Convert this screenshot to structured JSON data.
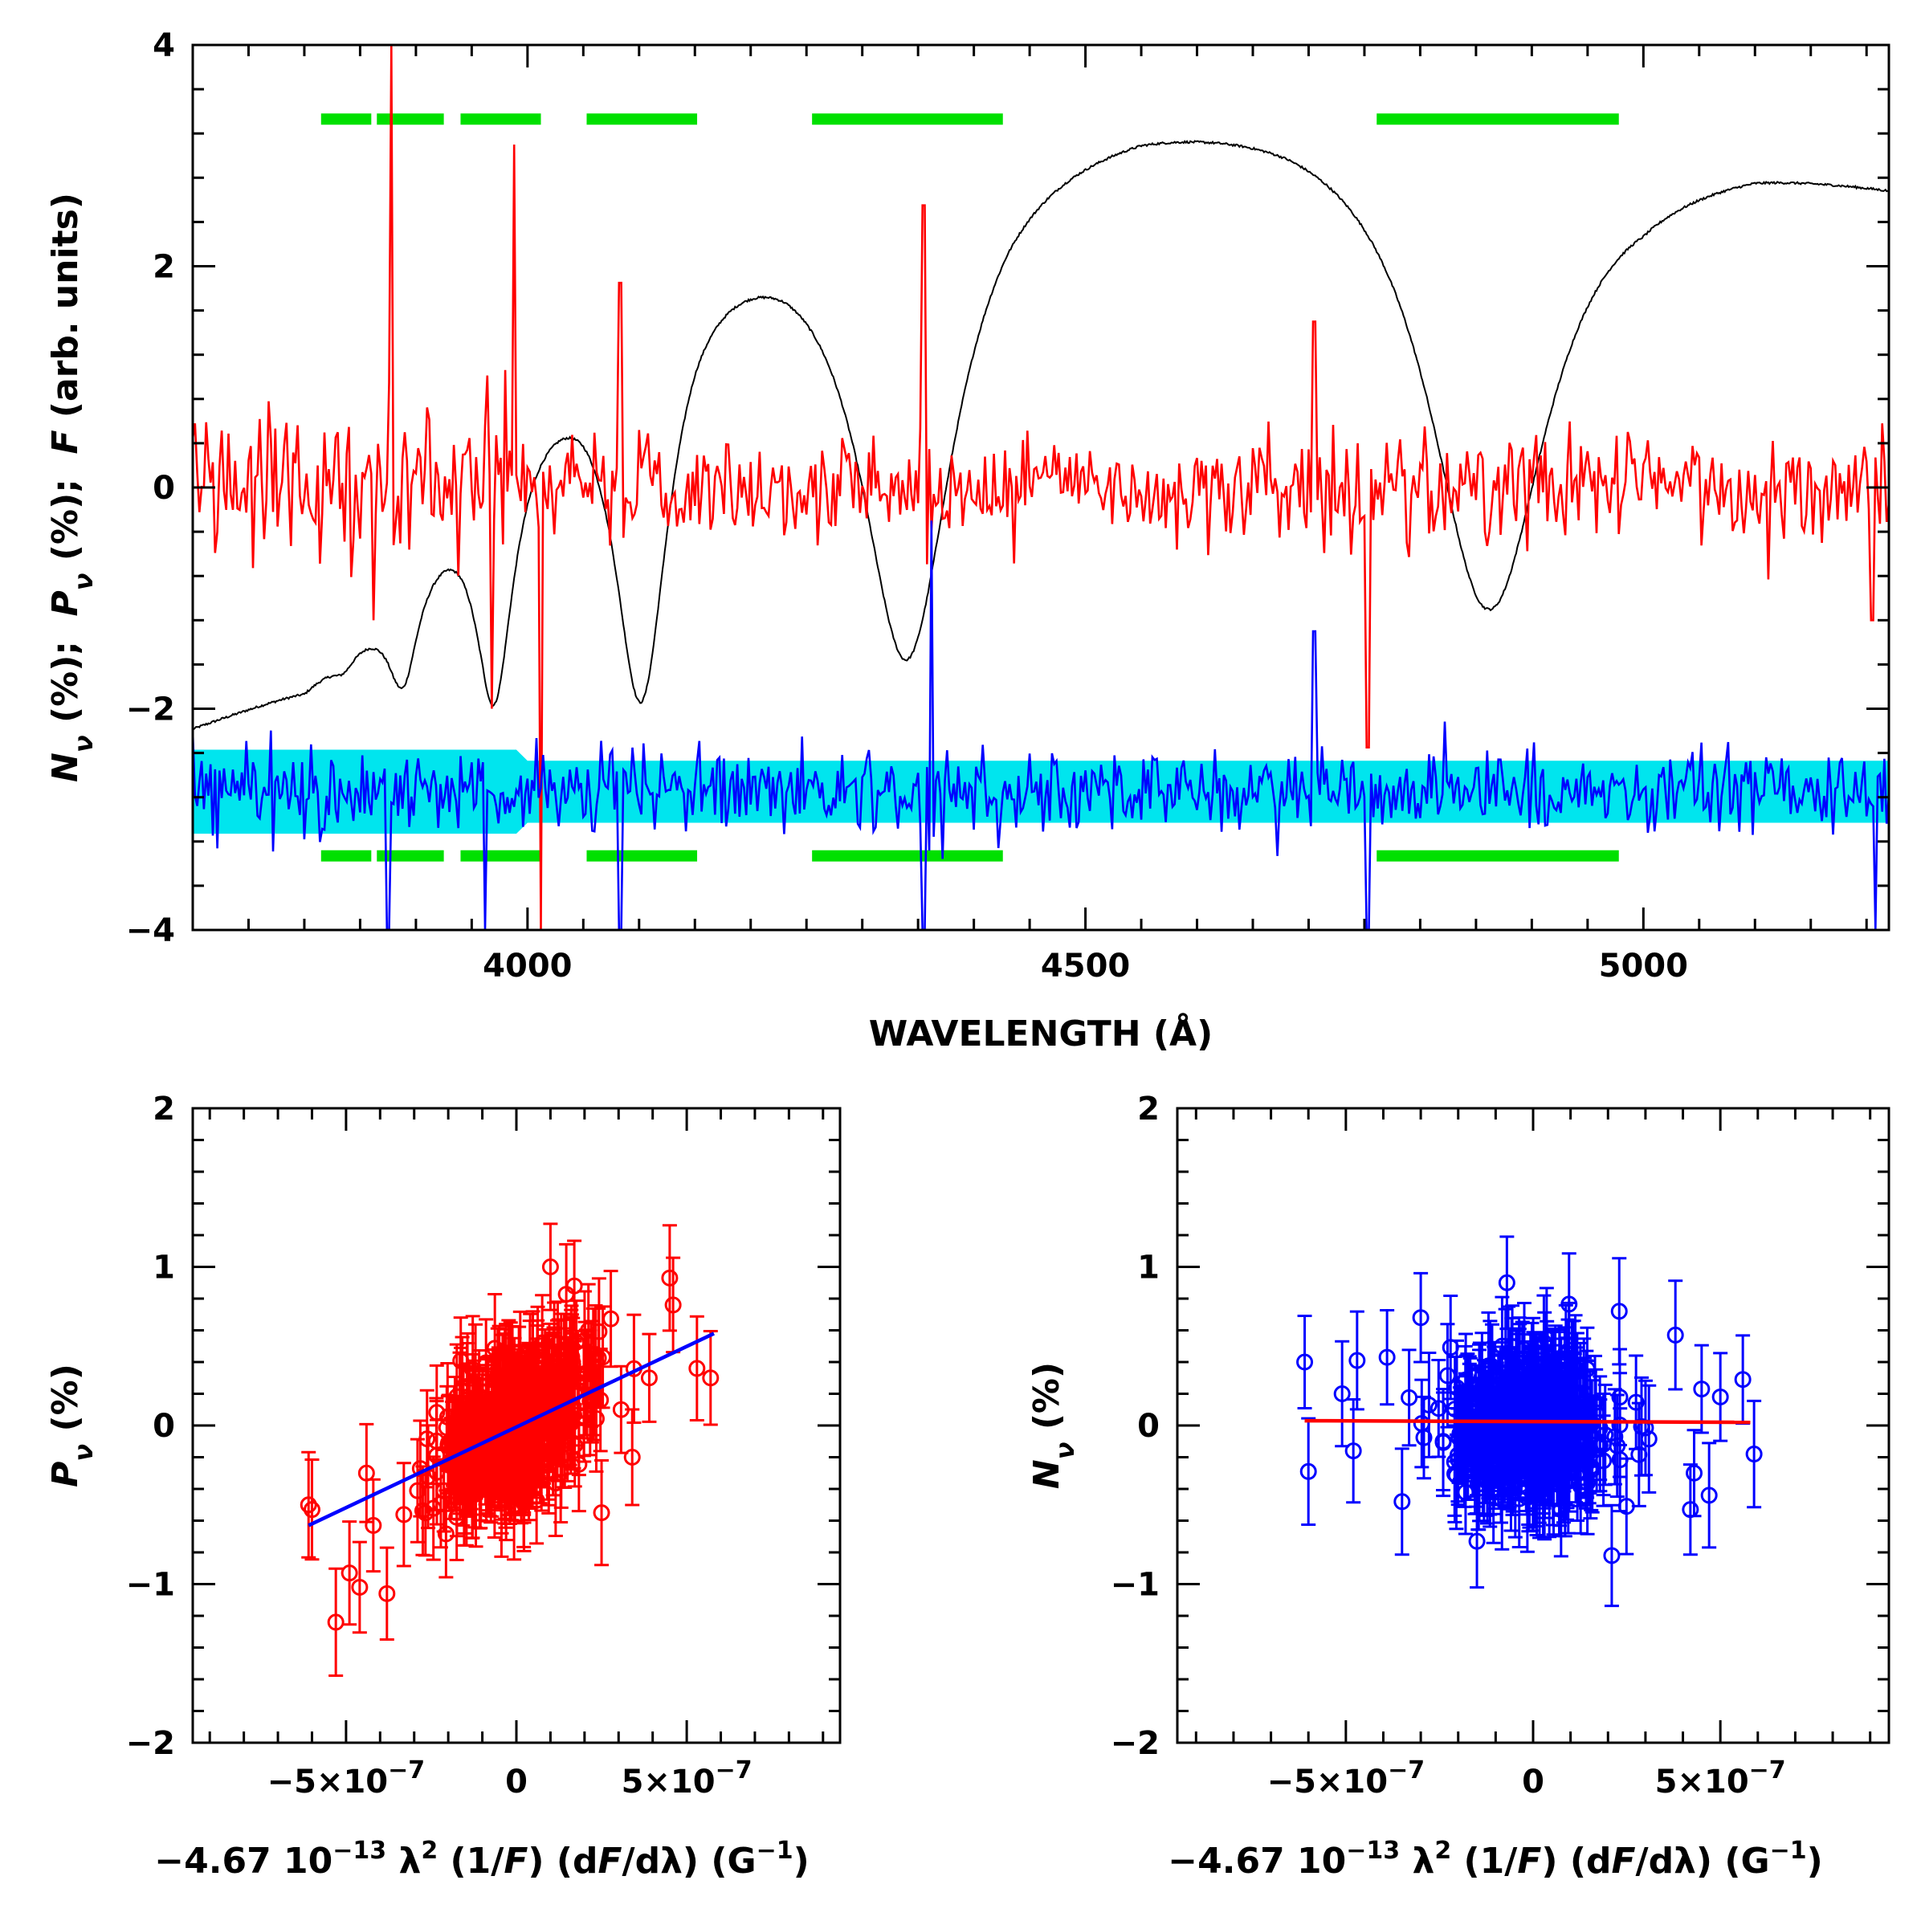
{
  "colors": {
    "flux": "#000000",
    "pv": "#ff0000",
    "nv": "#0000ff",
    "nv_band": "#00e5ee",
    "masks": "#00e000",
    "pv_fit": "#0000ff",
    "nv_fit": "#ff0000"
  },
  "chart_data": [
    {
      "type": "line",
      "panel": "spectrum",
      "xlabel": "WAVELENGTH (Å)",
      "ylabel": {
        "n": "N",
        "n_sub": "ν",
        "n_unit": " (%);  ",
        "p": "P",
        "p_sub": "ν",
        "p_unit": " (%);  ",
        "f": "F",
        "f_unit": " (arb. units)"
      },
      "xlim": [
        3700,
        5220
      ],
      "ylim": [
        -4,
        4
      ],
      "xticks": [
        "4000",
        "4500",
        "5000"
      ],
      "yticks": [
        "−4",
        "−2",
        "0",
        "2",
        "4"
      ],
      "balmer_lines": [
        {
          "wavelength": 3835,
          "flux_min": -1.45
        },
        {
          "wavelength": 3889,
          "flux_min": -1.5
        },
        {
          "wavelength": 3970,
          "flux_min": -1.65
        },
        {
          "wavelength": 4102,
          "flux_min": -1.65
        },
        {
          "wavelength": 4340,
          "flux_min": -1.42
        },
        {
          "wavelength": 4861,
          "flux_min": -1.05
        }
      ],
      "masked_regions": [
        [
          3815,
          3860
        ],
        [
          3865,
          3925
        ],
        [
          3940,
          4012
        ],
        [
          4053,
          4152
        ],
        [
          4255,
          4426
        ],
        [
          4761,
          4978
        ]
      ],
      "mask_levels": {
        "upper": 3.33,
        "lower": -3.33
      },
      "pv_spikes": [
        {
          "wavelength": 3878,
          "value": 4.0
        },
        {
          "wavelength": 3862,
          "value": -1.2
        },
        {
          "wavelength": 3988,
          "value": 3.1
        },
        {
          "wavelength": 4083,
          "value": 1.85
        },
        {
          "wavelength": 4355,
          "value": 2.55
        },
        {
          "wavelength": 4705,
          "value": 1.5
        },
        {
          "wavelength": 3968,
          "value": -2.0
        },
        {
          "wavelength": 4012,
          "value": -4.0
        },
        {
          "wavelength": 4753,
          "value": -2.35
        },
        {
          "wavelength": 5205,
          "value": -1.2
        }
      ],
      "nv_spikes": [
        {
          "wavelength": 4362,
          "value": -0.3
        },
        {
          "wavelength": 4705,
          "value": -1.3
        },
        {
          "wavelength": 3875,
          "value": -4.0
        },
        {
          "wavelength": 3962,
          "value": -4.0
        },
        {
          "wavelength": 4083,
          "value": -4.0
        },
        {
          "wavelength": 4355,
          "value": -4.0
        },
        {
          "wavelength": 4753,
          "value": -4.0
        },
        {
          "wavelength": 5208,
          "value": -4.0
        }
      ],
      "nv_offset": -2.75,
      "nv_band": {
        "center": -2.75,
        "half_width": 0.33
      }
    },
    {
      "type": "scatter",
      "panel": "pv-regression",
      "xlabel": {
        "pre": "−4.67 10",
        "exp": "−13",
        "mid": " λ",
        "sq": "2",
        "paren1": " (1/",
        "F1": "F",
        "paren2": ") (d",
        "F2": "F",
        "paren3": "/dλ) (G",
        "gexp": "−1",
        "end": ")"
      },
      "ylabel": {
        "sym": "P",
        "sub": "ν",
        "unit": " (%)"
      },
      "xlim": [
        -9.5e-07,
        9.5e-07
      ],
      "ylim": [
        -2,
        2
      ],
      "xticks": [
        {
          "value": -5e-07,
          "label": "−5×10",
          "exp": "−7"
        },
        {
          "value": 0,
          "label": "0",
          "exp": ""
        },
        {
          "value": 5e-07,
          "label": "5×10",
          "exp": "−7"
        }
      ],
      "yticks": [
        "−2",
        "−1",
        "0",
        "1",
        "2"
      ],
      "fit": {
        "x": [
          -6.1e-07,
          5.8e-07
        ],
        "y": [
          -0.63,
          0.58
        ]
      },
      "extreme_points": [
        {
          "x": -6.1e-07,
          "y": -0.5
        },
        {
          "x": -6e-07,
          "y": -0.53
        },
        {
          "x": -5.3e-07,
          "y": -1.24
        },
        {
          "x": -4.9e-07,
          "y": -0.93
        },
        {
          "x": -4.6e-07,
          "y": -1.02
        },
        {
          "x": -4.2e-07,
          "y": -0.63
        },
        {
          "x": -3.8e-07,
          "y": -1.06
        },
        {
          "x": -4.4e-07,
          "y": -0.3
        },
        {
          "x": 4.5e-07,
          "y": 0.93
        },
        {
          "x": 4.6e-07,
          "y": 0.76
        },
        {
          "x": 5.3e-07,
          "y": 0.36
        },
        {
          "x": 5.7e-07,
          "y": 0.3
        },
        {
          "x": 3.9e-07,
          "y": 0.3
        },
        {
          "x": 1e-07,
          "y": 1.0
        },
        {
          "x": 1.7e-07,
          "y": 0.88
        },
        {
          "x": 1.3e-07,
          "y": -0.3
        },
        {
          "x": 3.4e-07,
          "y": -0.2
        },
        {
          "x": 2.5e-07,
          "y": -0.55
        }
      ],
      "cloud": {
        "count": 450,
        "slope_per_unit": 1000000,
        "scatter": 0.2,
        "error": 0.3
      }
    },
    {
      "type": "scatter",
      "panel": "nv-regression",
      "xlabel": {
        "pre": "−4.67 10",
        "exp": "−13",
        "mid": " λ",
        "sq": "2",
        "paren1": " (1/",
        "F1": "F",
        "paren2": ") (d",
        "F2": "F",
        "paren3": "/dλ) (G",
        "gexp": "−1",
        "end": ")"
      },
      "ylabel": {
        "sym": "N",
        "sub": "ν",
        "unit": " (%)"
      },
      "xlim": [
        -9.5e-07,
        9.5e-07
      ],
      "ylim": [
        -2,
        2
      ],
      "xticks": [
        {
          "value": -5e-07,
          "label": "−5×10",
          "exp": "−7"
        },
        {
          "value": 0,
          "label": "0",
          "exp": ""
        },
        {
          "value": 5e-07,
          "label": "5×10",
          "exp": "−7"
        }
      ],
      "yticks": [
        "−2",
        "−1",
        "0",
        "1",
        "2"
      ],
      "fit": {
        "x": [
          -6.1e-07,
          5.8e-07
        ],
        "y": [
          0.03,
          0.02
        ]
      },
      "extreme_points": [
        {
          "x": -6.1e-07,
          "y": 0.4
        },
        {
          "x": -6e-07,
          "y": -0.29
        },
        {
          "x": -5.1e-07,
          "y": 0.2
        },
        {
          "x": -4.7e-07,
          "y": 0.41
        },
        {
          "x": -4.8e-07,
          "y": -0.16
        },
        {
          "x": -3.9e-07,
          "y": 0.43
        },
        {
          "x": -3.5e-07,
          "y": -0.48
        },
        {
          "x": -3e-07,
          "y": 0.68
        },
        {
          "x": -7e-08,
          "y": 0.9
        },
        {
          "x": -1.5e-07,
          "y": -0.73
        },
        {
          "x": 2.1e-07,
          "y": -0.82
        },
        {
          "x": 2.3e-07,
          "y": 0.72
        },
        {
          "x": 3.8e-07,
          "y": 0.57
        },
        {
          "x": 4.2e-07,
          "y": -0.53
        },
        {
          "x": 4.7e-07,
          "y": -0.44
        },
        {
          "x": 4.5e-07,
          "y": 0.23
        },
        {
          "x": 5e-07,
          "y": 0.18
        },
        {
          "x": 5.6e-07,
          "y": 0.29
        },
        {
          "x": 5.9e-07,
          "y": -0.18
        },
        {
          "x": 4.3e-07,
          "y": -0.3
        }
      ],
      "cloud": {
        "count": 450,
        "slope_per_unit": 0,
        "scatter": 0.2,
        "error": 0.3
      }
    }
  ]
}
